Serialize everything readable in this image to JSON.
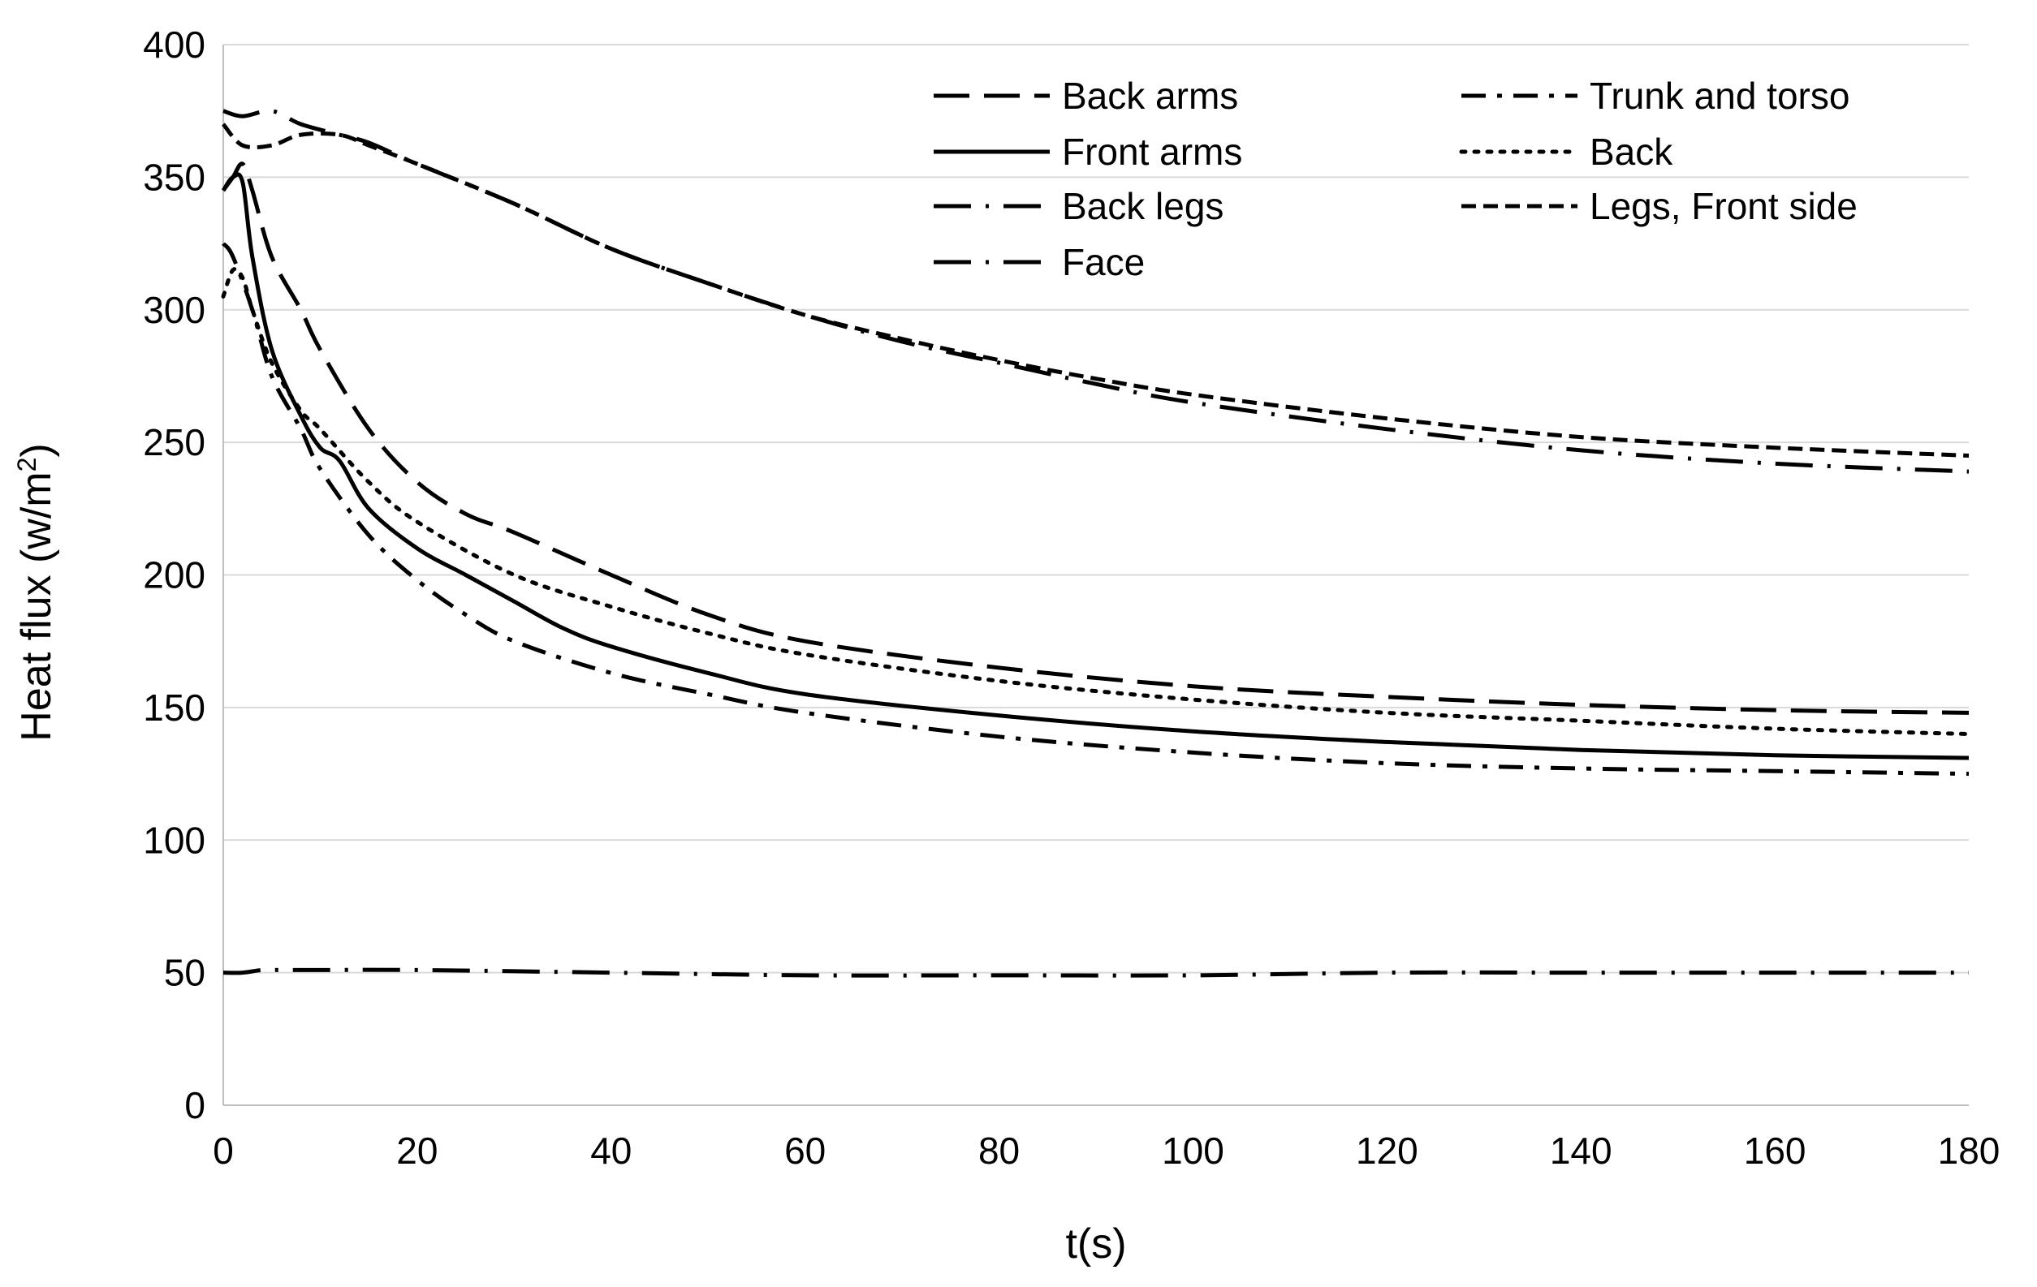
{
  "chart_data": {
    "type": "line",
    "title": "",
    "xlabel": "t(s)",
    "ylabel": "Heat flux (w/m²)",
    "ylabel_base": "Heat flux (w/m",
    "ylabel_sup": "2",
    "ylabel_close": ")",
    "xlim": [
      0,
      180
    ],
    "ylim": [
      0,
      400
    ],
    "xticks": [
      "0",
      "20",
      "40",
      "60",
      "80",
      "100",
      "120",
      "140",
      "160",
      "180"
    ],
    "yticks": [
      "0",
      "50",
      "100",
      "150",
      "200",
      "250",
      "300",
      "350",
      "400"
    ],
    "grid": true,
    "legend_position": "top-right",
    "series": [
      {
        "name": "Back arms",
        "style": "long-dash",
        "points": [
          [
            0,
            345
          ],
          [
            1,
            350
          ],
          [
            2,
            355
          ],
          [
            3,
            345
          ],
          [
            5,
            320
          ],
          [
            8,
            300
          ],
          [
            10,
            285
          ],
          [
            15,
            255
          ],
          [
            20,
            235
          ],
          [
            25,
            223
          ],
          [
            30,
            216
          ],
          [
            40,
            200
          ],
          [
            50,
            185
          ],
          [
            60,
            175
          ],
          [
            80,
            165
          ],
          [
            100,
            158
          ],
          [
            120,
            154
          ],
          [
            140,
            151
          ],
          [
            160,
            149
          ],
          [
            180,
            148
          ]
        ]
      },
      {
        "name": "Front arms",
        "style": "solid",
        "points": [
          [
            0,
            345
          ],
          [
            1,
            350
          ],
          [
            2,
            348
          ],
          [
            3,
            320
          ],
          [
            5,
            285
          ],
          [
            8,
            260
          ],
          [
            10,
            248
          ],
          [
            12,
            243
          ],
          [
            15,
            225
          ],
          [
            20,
            210
          ],
          [
            25,
            200
          ],
          [
            30,
            190
          ],
          [
            35,
            180
          ],
          [
            40,
            173
          ],
          [
            50,
            163
          ],
          [
            60,
            155
          ],
          [
            80,
            147
          ],
          [
            100,
            141
          ],
          [
            120,
            137
          ],
          [
            140,
            134
          ],
          [
            160,
            132
          ],
          [
            180,
            131
          ]
        ]
      },
      {
        "name": "Back legs",
        "style": "long-dash-dot",
        "points": [
          [
            0,
            375
          ],
          [
            2,
            373
          ],
          [
            5,
            375
          ],
          [
            8,
            370
          ],
          [
            12,
            366
          ],
          [
            15,
            363
          ],
          [
            20,
            355
          ],
          [
            30,
            340
          ],
          [
            40,
            323
          ],
          [
            50,
            310
          ],
          [
            60,
            298
          ],
          [
            70,
            288
          ],
          [
            80,
            280
          ],
          [
            90,
            272
          ],
          [
            100,
            265
          ],
          [
            120,
            255
          ],
          [
            140,
            247
          ],
          [
            160,
            242
          ],
          [
            180,
            239
          ]
        ]
      },
      {
        "name": "Face",
        "style": "long-dash-dot",
        "points": [
          [
            0,
            50
          ],
          [
            2,
            50
          ],
          [
            4,
            51
          ],
          [
            6,
            51
          ],
          [
            10,
            51
          ],
          [
            20,
            51
          ],
          [
            40,
            50
          ],
          [
            60,
            49
          ],
          [
            80,
            49
          ],
          [
            100,
            49
          ],
          [
            120,
            50
          ],
          [
            140,
            50
          ],
          [
            160,
            50
          ],
          [
            180,
            50
          ]
        ]
      },
      {
        "name": "Trunk and torso",
        "style": "dash-dot",
        "points": [
          [
            0,
            325
          ],
          [
            1,
            320
          ],
          [
            3,
            300
          ],
          [
            5,
            275
          ],
          [
            8,
            255
          ],
          [
            10,
            240
          ],
          [
            15,
            215
          ],
          [
            20,
            198
          ],
          [
            25,
            185
          ],
          [
            30,
            175
          ],
          [
            40,
            163
          ],
          [
            50,
            155
          ],
          [
            60,
            148
          ],
          [
            80,
            139
          ],
          [
            100,
            133
          ],
          [
            120,
            129
          ],
          [
            140,
            127
          ],
          [
            160,
            126
          ],
          [
            180,
            125
          ]
        ]
      },
      {
        "name": "Back",
        "style": "dotted",
        "points": [
          [
            0,
            305
          ],
          [
            1,
            315
          ],
          [
            2,
            312
          ],
          [
            3,
            300
          ],
          [
            5,
            280
          ],
          [
            8,
            262
          ],
          [
            10,
            255
          ],
          [
            15,
            235
          ],
          [
            20,
            220
          ],
          [
            30,
            200
          ],
          [
            40,
            188
          ],
          [
            50,
            178
          ],
          [
            60,
            170
          ],
          [
            80,
            160
          ],
          [
            100,
            153
          ],
          [
            120,
            148
          ],
          [
            140,
            145
          ],
          [
            160,
            142
          ],
          [
            180,
            140
          ]
        ]
      },
      {
        "name": "Legs, Front side",
        "style": "short-dash",
        "points": [
          [
            0,
            370
          ],
          [
            2,
            362
          ],
          [
            5,
            362
          ],
          [
            8,
            366
          ],
          [
            12,
            366
          ],
          [
            15,
            362
          ],
          [
            20,
            355
          ],
          [
            30,
            340
          ],
          [
            40,
            323
          ],
          [
            50,
            310
          ],
          [
            60,
            298
          ],
          [
            70,
            289
          ],
          [
            80,
            281
          ],
          [
            90,
            274
          ],
          [
            100,
            268
          ],
          [
            120,
            259
          ],
          [
            140,
            252
          ],
          [
            160,
            248
          ],
          [
            180,
            245
          ]
        ]
      }
    ]
  },
  "legend": {
    "left": [
      {
        "label": "Back arms",
        "style": "long-dash"
      },
      {
        "label": "Front arms",
        "style": "solid"
      },
      {
        "label": "Back legs",
        "style": "long-dash-dot"
      },
      {
        "label": "Face",
        "style": "long-dash-dot"
      }
    ],
    "right": [
      {
        "label": "Trunk and torso",
        "style": "dash-dot"
      },
      {
        "label": "Back",
        "style": "dotted"
      },
      {
        "label": "Legs, Front side",
        "style": "short-dash"
      }
    ]
  }
}
